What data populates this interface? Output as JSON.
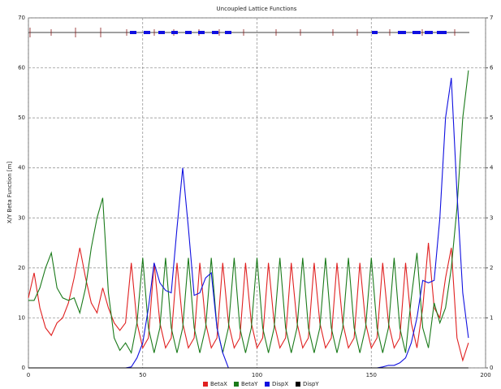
{
  "chart_data": {
    "type": "line",
    "title": "Uncoupled Lattice Functions",
    "y_label": "X/Y Beta Function [m]",
    "x": [
      0,
      2.5,
      5,
      7.5,
      10,
      12.5,
      15,
      17.5,
      20,
      22.5,
      25,
      27.5,
      30,
      32.5,
      35,
      37.5,
      40,
      42.5,
      45,
      47.5,
      50,
      52.5,
      55,
      57.5,
      60,
      62.5,
      65,
      67.5,
      70,
      72.5,
      75,
      77.5,
      80,
      82.5,
      85,
      87.5,
      90,
      92.5,
      95,
      97.5,
      100,
      102.5,
      105,
      107.5,
      110,
      112.5,
      115,
      117.5,
      120,
      122.5,
      125,
      127.5,
      130,
      132.5,
      135,
      137.5,
      140,
      142.5,
      145,
      147.5,
      150,
      152.5,
      155,
      157.5,
      160,
      162.5,
      165,
      167.5,
      170,
      172.5,
      175,
      177.5,
      180,
      182.5,
      185,
      187.5,
      190,
      192.5
    ],
    "series": [
      {
        "name": "BetaX",
        "color": "#e02020",
        "values": [
          14,
          19,
          12,
          8,
          6.5,
          9,
          10,
          13,
          18,
          24,
          18,
          13,
          11,
          16,
          12,
          9,
          7.5,
          9,
          21,
          9,
          4,
          6,
          21,
          9,
          4,
          6,
          21,
          9,
          4,
          6,
          21,
          9,
          4,
          6,
          21,
          9,
          4,
          6,
          21,
          9,
          4,
          6,
          21,
          9,
          4,
          6,
          21,
          9,
          4,
          6,
          21,
          9,
          4,
          6,
          21,
          9,
          4,
          6,
          21,
          9,
          4,
          6,
          21,
          9,
          4,
          6,
          21,
          9,
          4,
          12,
          25,
          12,
          10,
          18,
          24,
          6,
          1.5,
          5
        ]
      },
      {
        "name": "BetaY",
        "color": "#1a7a1a",
        "values": [
          13.5,
          13.5,
          16,
          20,
          23,
          16,
          14,
          13.5,
          14,
          11,
          16,
          24,
          30,
          34,
          15,
          6,
          3.5,
          5,
          3,
          9,
          22,
          8,
          3,
          8,
          22,
          8,
          3,
          8,
          22,
          8,
          3,
          8,
          22,
          8,
          3,
          8,
          22,
          8,
          3,
          8,
          22,
          8,
          3,
          8,
          22,
          8,
          3,
          8,
          22,
          8,
          3,
          8,
          22,
          8,
          3,
          8,
          22,
          8,
          3,
          8,
          22,
          8,
          3,
          8,
          22,
          8,
          3,
          14,
          23,
          8,
          4,
          13,
          9,
          12,
          20,
          32,
          50,
          59.5
        ]
      },
      {
        "name": "DispX",
        "color": "#1010e0",
        "axis": "y2",
        "values": [
          0,
          0,
          0,
          0,
          0,
          0,
          0,
          0,
          0,
          0,
          0,
          0,
          0,
          0,
          0,
          0,
          0,
          0,
          0.02,
          0.2,
          0.5,
          1.2,
          2.1,
          1.7,
          1.55,
          1.5,
          2.8,
          4.0,
          2.8,
          1.45,
          1.5,
          1.8,
          1.9,
          0.8,
          0.3,
          0,
          0,
          0,
          0,
          0,
          0,
          0,
          0,
          0,
          0,
          0,
          0,
          0,
          0,
          0,
          0,
          0,
          0,
          0,
          0,
          0,
          0,
          0,
          0,
          0,
          0,
          0,
          0.02,
          0.05,
          0.05,
          0.1,
          0.2,
          0.5,
          1.0,
          1.75,
          1.7,
          1.75,
          3.0,
          5.0,
          5.8,
          3.5,
          1.5,
          0.6
        ]
      },
      {
        "name": "DispY",
        "color": "#000000",
        "axis": "y2",
        "values": [
          0,
          0,
          0,
          0,
          0,
          0,
          0,
          0,
          0,
          0,
          0,
          0,
          0,
          0,
          0,
          0,
          0,
          0,
          0,
          0,
          0,
          0,
          0,
          0,
          0,
          0,
          0,
          0,
          0,
          0,
          0,
          0,
          0,
          0,
          0,
          0,
          0,
          0,
          0,
          0,
          0,
          0,
          0,
          0,
          0,
          0,
          0,
          0,
          0,
          0,
          0,
          0,
          0,
          0,
          0,
          0,
          0,
          0,
          0,
          0,
          0,
          0,
          0,
          0,
          0,
          0,
          0,
          0,
          0,
          0,
          0,
          0,
          0,
          0,
          0,
          0,
          0,
          0
        ]
      }
    ],
    "xlim": [
      0,
      200
    ],
    "xticks": [
      0,
      50,
      100,
      150,
      200
    ],
    "ylim": [
      0,
      70
    ],
    "yticks": [
      0,
      10,
      20,
      30,
      40,
      50,
      60,
      70
    ],
    "y2lim": [
      0,
      7
    ],
    "y2ticks": [
      0,
      1,
      2,
      3,
      4,
      5,
      6,
      7
    ],
    "grid": true,
    "legend": "bottom"
  }
}
